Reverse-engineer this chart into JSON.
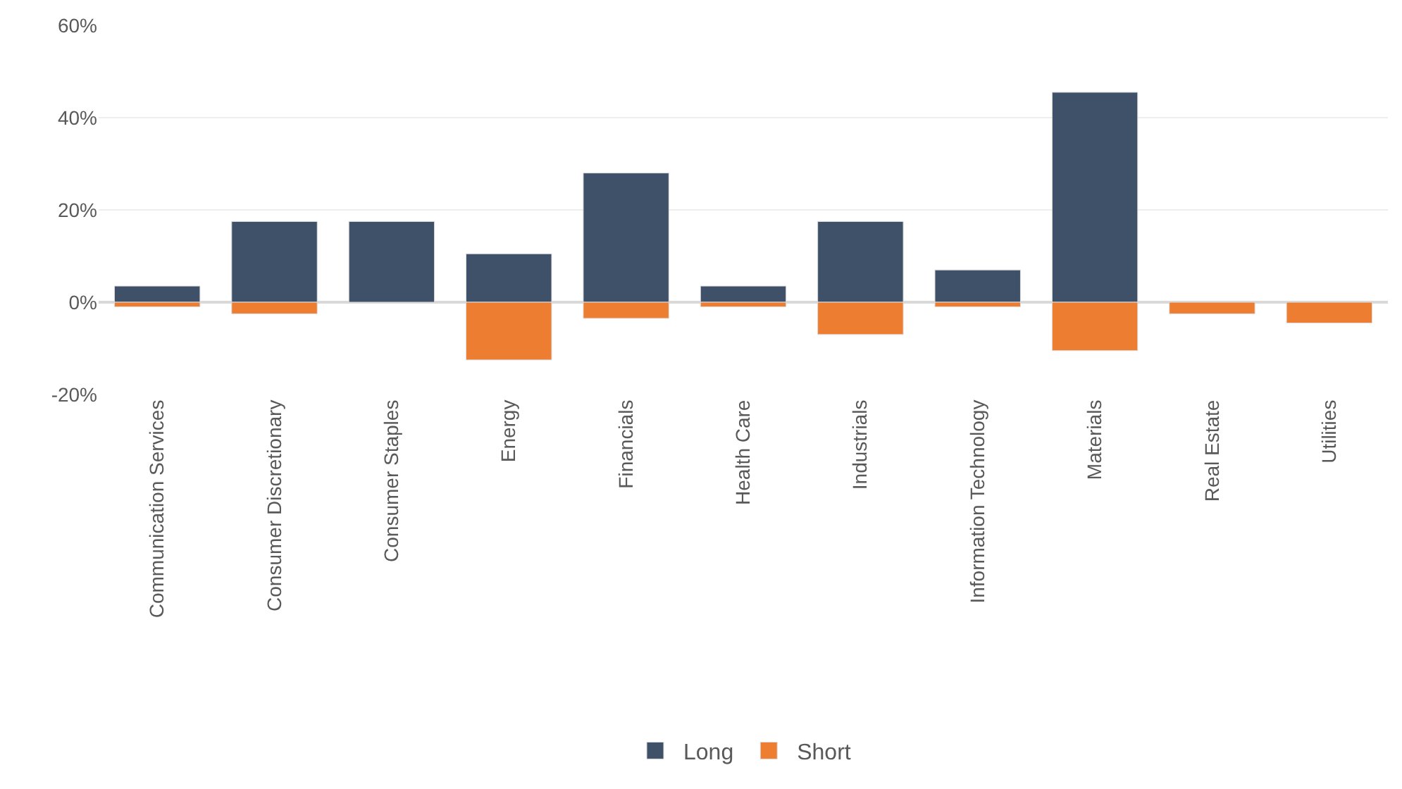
{
  "chart_data": {
    "type": "bar",
    "stacked": true,
    "categories": [
      "Communication Services",
      "Consumer Discretionary",
      "Consumer Staples",
      "Energy",
      "Financials",
      "Health Care",
      "Industrials",
      "Information Technology",
      "Materials",
      "Real Estate",
      "Utilities"
    ],
    "series": [
      {
        "name": "Long",
        "color": "#3f5069",
        "values": [
          3.5,
          17.5,
          17.5,
          10.5,
          28,
          3.5,
          17.5,
          7,
          45.5,
          null,
          null
        ]
      },
      {
        "name": "Short",
        "color": "#ed7d31",
        "values": [
          -1,
          -2.5,
          null,
          -12.5,
          -3.5,
          -1,
          -7,
          -1,
          -10.5,
          -2.5,
          -4.5
        ]
      }
    ],
    "ylim": [
      -20,
      60
    ],
    "yticks": [
      {
        "value": -20,
        "label": "-20%"
      },
      {
        "value": 0,
        "label": "0%"
      },
      {
        "value": 20,
        "label": "20%"
      },
      {
        "value": 40,
        "label": "40%"
      },
      {
        "value": 60,
        "label": "60%"
      }
    ],
    "grid": "y",
    "legend": "bottom"
  }
}
